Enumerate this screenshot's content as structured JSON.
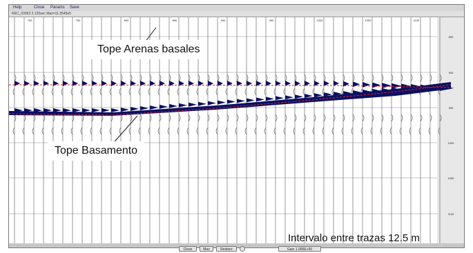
{
  "menu": [
    {
      "label": "Help"
    },
    {
      "label": "Close"
    },
    {
      "label": "Params"
    },
    {
      "label": "Save"
    }
  ],
  "status_line": "REC_03363  2.125sec  Max=11.3545e5",
  "annotations": {
    "top_label": "Tope Arenas basales",
    "bottom_label": "Tope Basamento",
    "interval_note": "Intervalo  entre trazas  12.5 m"
  },
  "trace_ticks": [
    "700",
    "750",
    "800",
    "850",
    "900",
    "950",
    "1000",
    "1050",
    "1100"
  ],
  "time_ticks": [
    "850",
    "900",
    "950",
    "1000",
    "1050",
    "1100"
  ],
  "bottom_controls": [
    {
      "label": "Close"
    },
    {
      "label": "Max"
    },
    {
      "label": "Restore"
    },
    {
      "label": "Gain 1.000E+00"
    }
  ],
  "colors": {
    "horizon_pick": "#e0202a",
    "wiggle_fill": "#0b1060",
    "panel_bg": "#c6c6c6"
  }
}
